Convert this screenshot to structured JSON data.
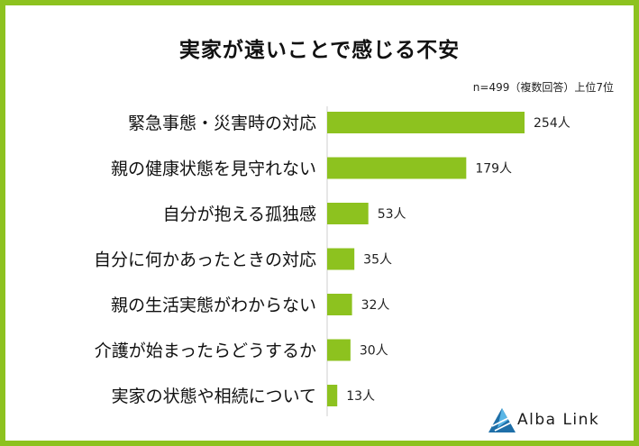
{
  "title": "実家が遠いことで感じる不安",
  "note": "n=499（複数回答）上位7位",
  "chart_data": {
    "type": "bar",
    "orientation": "horizontal",
    "categories": [
      "緊急事態・災害時の対応",
      "親の健康状態を見守れない",
      "自分が抱える孤独感",
      "自分に何かあったときの対応",
      "親の生活実態がわからない",
      "介護が始まったらどうするか",
      "実家の状態や相続について"
    ],
    "values": [
      254,
      179,
      53,
      35,
      32,
      30,
      13
    ],
    "value_labels": [
      "254人",
      "179人",
      "53人",
      "35人",
      "32人",
      "30人",
      "13人"
    ],
    "bar_color": "#8dc21f",
    "xlim": [
      0,
      254
    ],
    "grid": false,
    "legend": "none"
  },
  "logo": {
    "text": "Alba Link",
    "color": "#1e6fa8"
  }
}
